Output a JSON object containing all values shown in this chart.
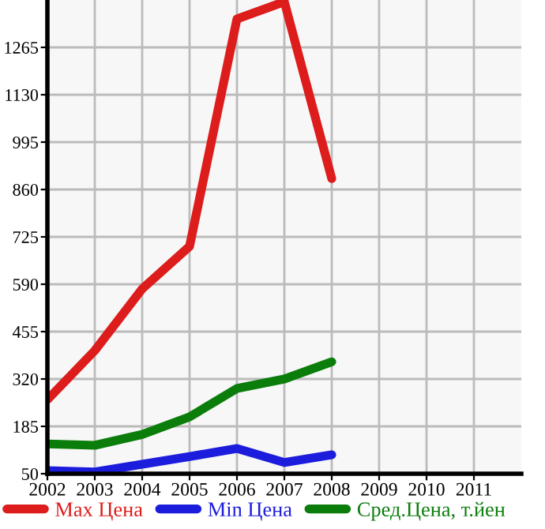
{
  "chart_data": {
    "type": "line",
    "x": [
      2002,
      2003,
      2004,
      2005,
      2006,
      2007,
      2008
    ],
    "series": [
      {
        "name": "Max Цена",
        "color": "#dd1c1c",
        "values": [
          261,
          401,
          577,
          698,
          1346,
          1395,
          891
        ]
      },
      {
        "name": "Min Цена",
        "color": "#1c1cdd",
        "values": [
          59,
          55,
          77,
          99,
          122,
          82,
          104
        ]
      },
      {
        "name": "Сред.Цена, т.йен",
        "color": "#0b7d0b",
        "values": [
          135,
          131,
          162,
          212,
          293,
          320,
          369
        ]
      }
    ],
    "xlim": [
      2002,
      2012
    ],
    "xticks": [
      2002,
      2003,
      2004,
      2005,
      2006,
      2007,
      2008,
      2009,
      2010,
      2011
    ],
    "ylim": [
      50,
      1400
    ],
    "yticks": [
      50,
      185,
      320,
      455,
      590,
      725,
      860,
      995,
      1130,
      1265
    ],
    "grid": true,
    "legend": "bottom",
    "marker": "none",
    "line_style": "solid"
  }
}
